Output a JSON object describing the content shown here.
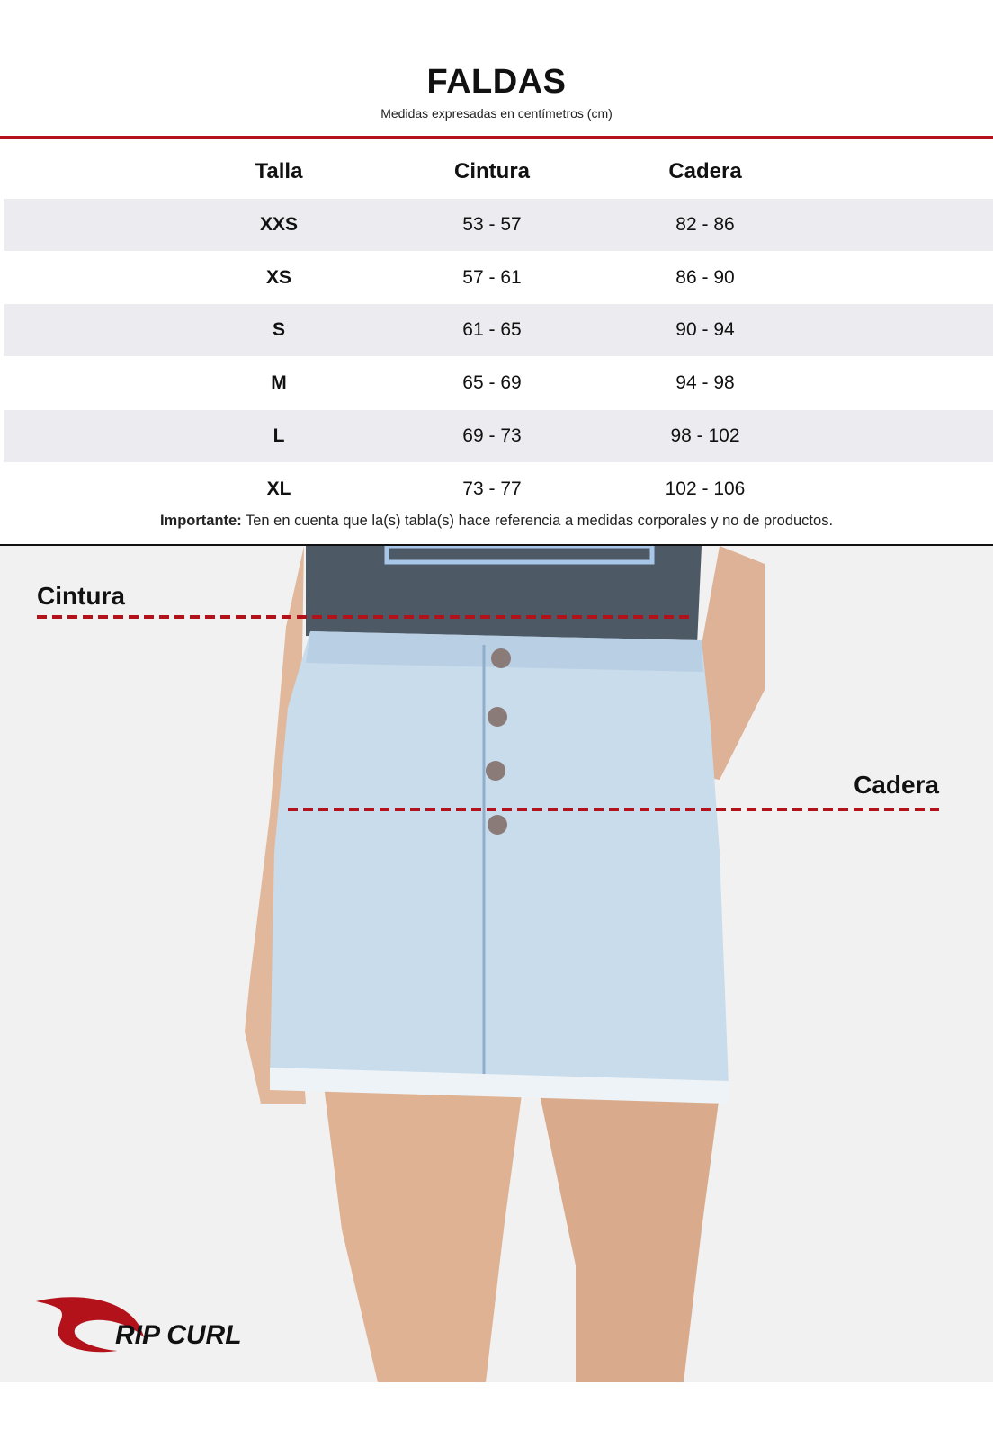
{
  "header": {
    "title": "FALDAS",
    "subtitle": "Medidas expresadas en centímetros (cm)"
  },
  "table": {
    "columns": [
      "Talla",
      "Cintura",
      "Cadera"
    ],
    "rows": [
      [
        "XXS",
        "53 - 57",
        "82 - 86"
      ],
      [
        "XS",
        "57 - 61",
        "86 - 90"
      ],
      [
        "S",
        "61 - 65",
        "90 - 94"
      ],
      [
        "M",
        "65 - 69",
        "94 - 98"
      ],
      [
        "L",
        "69 - 73",
        "98 - 102"
      ],
      [
        "XL",
        "73 - 77",
        "102 - 106"
      ]
    ]
  },
  "note": {
    "label": "Importante:",
    "text": " Ten en cuenta que la(s) tabla(s) hace referencia a medidas corporales y no de productos."
  },
  "figure": {
    "waist_label": "Cintura",
    "hip_label": "Cadera",
    "measure_line_color": "#b3121b"
  },
  "brand": {
    "logo_text": "RIP CURL",
    "logo_color": "#b3121b"
  }
}
